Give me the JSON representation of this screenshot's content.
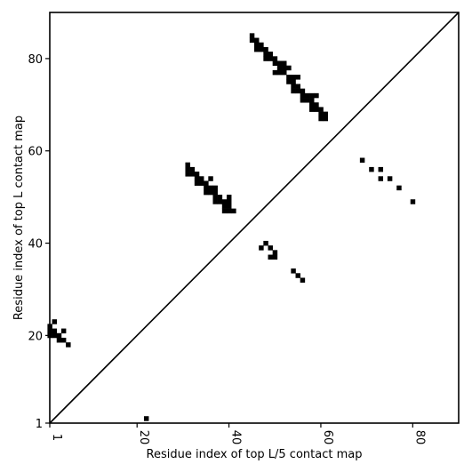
{
  "chart_data": {
    "type": "scatter",
    "title": "",
    "xlabel": "Residue index of top L/5 contact map",
    "ylabel": "Residue index of top L contact map",
    "xlim": [
      1,
      90
    ],
    "ylim": [
      1,
      90
    ],
    "xticks": [
      "1",
      "20",
      "40",
      "60",
      "80"
    ],
    "yticks": [
      "1",
      "20",
      "40",
      "60",
      "80"
    ],
    "xtick_values": [
      1,
      20,
      40,
      60,
      80
    ],
    "ytick_values": [
      1,
      20,
      40,
      60,
      80
    ],
    "diagonal_line": true,
    "marker_color": "#000000",
    "points": [
      [
        22,
        2
      ],
      [
        45,
        85
      ],
      [
        45,
        84
      ],
      [
        46,
        84
      ],
      [
        46,
        83
      ],
      [
        46,
        82
      ],
      [
        47,
        83
      ],
      [
        47,
        82
      ],
      [
        48,
        82
      ],
      [
        48,
        81
      ],
      [
        48,
        80
      ],
      [
        49,
        81
      ],
      [
        49,
        80
      ],
      [
        50,
        80
      ],
      [
        50,
        79
      ],
      [
        51,
        79
      ],
      [
        51,
        78
      ],
      [
        51,
        77
      ],
      [
        50,
        77
      ],
      [
        52,
        79
      ],
      [
        52,
        78
      ],
      [
        52,
        77
      ],
      [
        53,
        78
      ],
      [
        53,
        76
      ],
      [
        53,
        75
      ],
      [
        54,
        76
      ],
      [
        54,
        75
      ],
      [
        54,
        74
      ],
      [
        54,
        73
      ],
      [
        55,
        76
      ],
      [
        55,
        74
      ],
      [
        55,
        73
      ],
      [
        56,
        73
      ],
      [
        56,
        72
      ],
      [
        56,
        71
      ],
      [
        57,
        72
      ],
      [
        57,
        71
      ],
      [
        58,
        72
      ],
      [
        58,
        71
      ],
      [
        58,
        70
      ],
      [
        58,
        69
      ],
      [
        59,
        72
      ],
      [
        59,
        70
      ],
      [
        59,
        69
      ],
      [
        60,
        69
      ],
      [
        60,
        68
      ],
      [
        60,
        67
      ],
      [
        61,
        68
      ],
      [
        61,
        67
      ],
      [
        31,
        57
      ],
      [
        31,
        56
      ],
      [
        31,
        55
      ],
      [
        32,
        56
      ],
      [
        32,
        55
      ],
      [
        33,
        55
      ],
      [
        33,
        54
      ],
      [
        33,
        53
      ],
      [
        34,
        54
      ],
      [
        34,
        53
      ],
      [
        35,
        53
      ],
      [
        35,
        52
      ],
      [
        35,
        51
      ],
      [
        36,
        54
      ],
      [
        36,
        52
      ],
      [
        36,
        51
      ],
      [
        37,
        52
      ],
      [
        37,
        51
      ],
      [
        37,
        50
      ],
      [
        37,
        49
      ],
      [
        38,
        50
      ],
      [
        38,
        49
      ],
      [
        39,
        49
      ],
      [
        39,
        48
      ],
      [
        39,
        47
      ],
      [
        40,
        50
      ],
      [
        40,
        49
      ],
      [
        40,
        48
      ],
      [
        40,
        47
      ],
      [
        41,
        47
      ],
      [
        47,
        39
      ],
      [
        48,
        40
      ],
      [
        49,
        39
      ],
      [
        49,
        37
      ],
      [
        50,
        38
      ],
      [
        50,
        37
      ],
      [
        54,
        34
      ],
      [
        55,
        33
      ],
      [
        56,
        32
      ],
      [
        69,
        58
      ],
      [
        71,
        56
      ],
      [
        73,
        56
      ],
      [
        73,
        54
      ],
      [
        75,
        54
      ],
      [
        77,
        52
      ],
      [
        80,
        49
      ],
      [
        1,
        22
      ],
      [
        1,
        21
      ],
      [
        1,
        20
      ],
      [
        2,
        23
      ],
      [
        2,
        21
      ],
      [
        2,
        20
      ],
      [
        3,
        20
      ],
      [
        3,
        19
      ],
      [
        4,
        21
      ],
      [
        4,
        19
      ],
      [
        5,
        18
      ]
    ]
  }
}
